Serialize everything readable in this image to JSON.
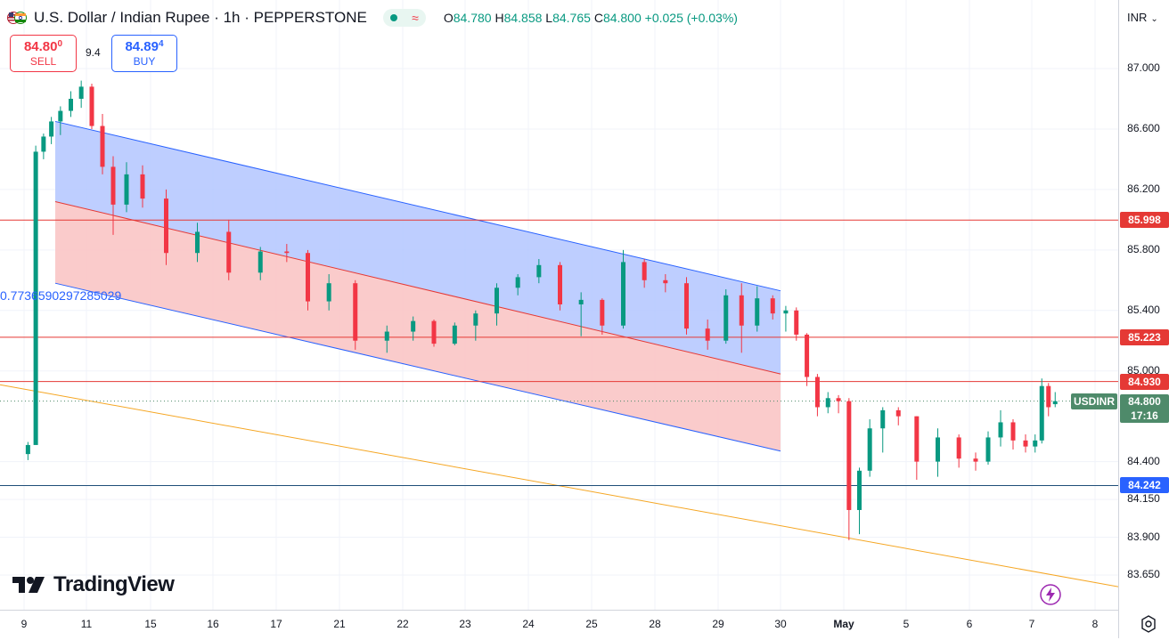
{
  "header": {
    "title": "U.S. Dollar / Indian Rupee · 1h · PEPPERSTONE",
    "ohlc": {
      "o_label": "O",
      "o": "84.780",
      "h_label": "H",
      "h": "84.858",
      "l_label": "L",
      "l": "84.765",
      "c_label": "C",
      "c": "84.800",
      "change": "+0.025 (+0.03%)"
    }
  },
  "trade": {
    "sell_price_main": "84.80",
    "sell_price_sup": "0",
    "sell_label": "SELL",
    "spread": "9.4",
    "buy_price_main": "84.89",
    "buy_price_sup": "4",
    "buy_label": "BUY"
  },
  "currency": "INR",
  "channel_label": "0.7736590297285029",
  "symbol_tag": "USDINR",
  "current_price": "84.800",
  "countdown": "17:16",
  "logo_text": "TradingView",
  "colors": {
    "up": "#089981",
    "down": "#f23645",
    "channel_upper": "#b3c6ff",
    "channel_lower": "#f9c5c5",
    "channel_line": "#2962ff",
    "resistance": "#e53935",
    "support": "#1e3a8a",
    "trendline": "#f5a623"
  },
  "chart_data": {
    "type": "candlestick",
    "price_ticks": [
      "87.000",
      "86.600",
      "86.200",
      "85.800",
      "85.400",
      "85.000",
      "84.400",
      "84.150",
      "83.900",
      "83.650"
    ],
    "time_ticks": [
      "9",
      "11",
      "15",
      "16",
      "17",
      "21",
      "22",
      "23",
      "24",
      "25",
      "28",
      "29",
      "30",
      "May",
      "5",
      "6",
      "7",
      "8"
    ],
    "horizontal_levels": [
      {
        "price": 85.998,
        "label": "85.998",
        "color": "#e53935"
      },
      {
        "price": 85.223,
        "label": "85.223",
        "color": "#e53935"
      },
      {
        "price": 84.93,
        "label": "84.930",
        "color": "#e53935"
      },
      {
        "price": 84.242,
        "label": "84.242",
        "color": "#2962ff"
      }
    ],
    "channel": {
      "start": {
        "date": "Apr 10",
        "upper": 86.65,
        "mid": 86.12,
        "lower": 85.58
      },
      "end": {
        "date": "Apr 30",
        "upper": 85.53,
        "mid": 84.98,
        "lower": 84.47
      }
    },
    "trendline": {
      "start": {
        "date": "Apr 9",
        "price": 84.88
      },
      "end": {
        "date": "May 8",
        "price": 83.6
      }
    },
    "series_close": [
      [
        "Apr 9",
        84.45,
        84.53,
        84.41,
        84.51
      ],
      [
        "Apr 9",
        84.51,
        86.49,
        86.3,
        86.45
      ],
      [
        "Apr 9",
        86.45,
        86.57,
        86.4,
        86.55
      ],
      [
        "Apr 9",
        86.55,
        86.68,
        86.5,
        86.65
      ],
      [
        "Apr 10",
        86.65,
        86.75,
        86.56,
        86.72
      ],
      [
        "Apr 10",
        86.72,
        86.85,
        86.68,
        86.8
      ],
      [
        "Apr 10",
        86.8,
        86.92,
        86.74,
        86.88
      ],
      [
        "Apr 11",
        86.88,
        86.9,
        86.6,
        86.62
      ],
      [
        "Apr 11",
        86.62,
        86.7,
        86.3,
        86.35
      ],
      [
        "Apr 11",
        86.35,
        86.42,
        85.9,
        86.1
      ],
      [
        "Apr 14",
        86.1,
        86.38,
        86.05,
        86.3
      ],
      [
        "Apr 14",
        86.3,
        86.36,
        86.08,
        86.14
      ],
      [
        "Apr 15",
        86.14,
        86.2,
        85.7,
        85.78
      ],
      [
        "Apr 15",
        85.78,
        85.98,
        85.72,
        85.92
      ],
      [
        "Apr 16",
        85.92,
        86.0,
        85.6,
        85.65
      ],
      [
        "Apr 16",
        85.65,
        85.82,
        85.6,
        85.79
      ],
      [
        "Apr 17",
        85.79,
        85.84,
        85.72,
        85.78
      ],
      [
        "Apr 17",
        85.78,
        85.8,
        85.4,
        85.46
      ],
      [
        "Apr 17",
        85.46,
        85.64,
        85.4,
        85.58
      ],
      [
        "Apr 21",
        85.58,
        85.6,
        85.14,
        85.2
      ],
      [
        "Apr 21",
        85.2,
        85.3,
        85.12,
        85.26
      ],
      [
        "Apr 22",
        85.26,
        85.36,
        85.2,
        85.33
      ],
      [
        "Apr 22",
        85.33,
        85.34,
        85.16,
        85.18
      ],
      [
        "Apr 22",
        85.18,
        85.32,
        85.17,
        85.3
      ],
      [
        "Apr 23",
        85.3,
        85.4,
        85.2,
        85.38
      ],
      [
        "Apr 23",
        85.38,
        85.58,
        85.3,
        85.55
      ],
      [
        "Apr 23",
        85.55,
        85.64,
        85.5,
        85.62
      ],
      [
        "Apr 24",
        85.62,
        85.74,
        85.58,
        85.7
      ],
      [
        "Apr 24",
        85.7,
        85.72,
        85.4,
        85.44
      ],
      [
        "Apr 24",
        85.44,
        85.52,
        85.23,
        85.47
      ],
      [
        "Apr 25",
        85.47,
        85.48,
        85.24,
        85.3
      ],
      [
        "Apr 25",
        85.3,
        85.8,
        85.28,
        85.72
      ],
      [
        "Apr 25",
        85.72,
        85.74,
        85.55,
        85.6
      ],
      [
        "Apr 28",
        85.6,
        85.64,
        85.52,
        85.58
      ],
      [
        "Apr 28",
        85.58,
        85.62,
        85.24,
        85.28
      ],
      [
        "Apr 28",
        85.28,
        85.34,
        85.14,
        85.2
      ],
      [
        "Apr 29",
        85.2,
        85.54,
        85.18,
        85.5
      ],
      [
        "Apr 29",
        85.5,
        85.58,
        85.12,
        85.3
      ],
      [
        "Apr 29",
        85.3,
        85.56,
        85.26,
        85.48
      ],
      [
        "Apr 29",
        85.48,
        85.5,
        85.34,
        85.38
      ],
      [
        "Apr 30",
        85.38,
        85.43,
        85.26,
        85.4
      ],
      [
        "Apr 30",
        85.4,
        85.42,
        85.2,
        85.24
      ],
      [
        "Apr 30",
        85.24,
        85.25,
        84.9,
        84.96
      ],
      [
        "Apr 30",
        84.96,
        84.98,
        84.7,
        84.76
      ],
      [
        "Apr 30",
        84.76,
        84.86,
        84.72,
        84.82
      ],
      [
        "Apr 30",
        84.82,
        84.84,
        84.72,
        84.8
      ],
      [
        "May 1",
        84.8,
        84.82,
        83.88,
        84.08
      ],
      [
        "May 1",
        84.08,
        84.36,
        83.92,
        84.34
      ],
      [
        "May 1",
        84.34,
        84.68,
        84.3,
        84.62
      ],
      [
        "May 2",
        84.62,
        84.76,
        84.46,
        84.74
      ],
      [
        "May 2",
        84.74,
        84.76,
        84.64,
        84.7
      ],
      [
        "May 5",
        84.7,
        84.7,
        84.28,
        84.4
      ],
      [
        "May 5",
        84.4,
        84.62,
        84.3,
        84.56
      ],
      [
        "May 5",
        84.56,
        84.58,
        84.36,
        84.42
      ],
      [
        "May 6",
        84.42,
        84.46,
        84.34,
        84.4
      ],
      [
        "May 6",
        84.4,
        84.6,
        84.38,
        84.56
      ],
      [
        "May 6",
        84.56,
        84.74,
        84.5,
        84.66
      ],
      [
        "May 6",
        84.66,
        84.68,
        84.48,
        84.54
      ],
      [
        "May 6",
        84.54,
        84.58,
        84.46,
        84.5
      ],
      [
        "May 7",
        84.5,
        84.58,
        84.46,
        84.54
      ],
      [
        "May 7",
        84.54,
        84.95,
        84.52,
        84.9
      ],
      [
        "May 7",
        84.9,
        84.92,
        84.7,
        84.76
      ],
      [
        "May 7",
        84.78,
        84.86,
        84.76,
        84.8
      ]
    ],
    "ylim": [
      83.55,
      87.2
    ]
  }
}
